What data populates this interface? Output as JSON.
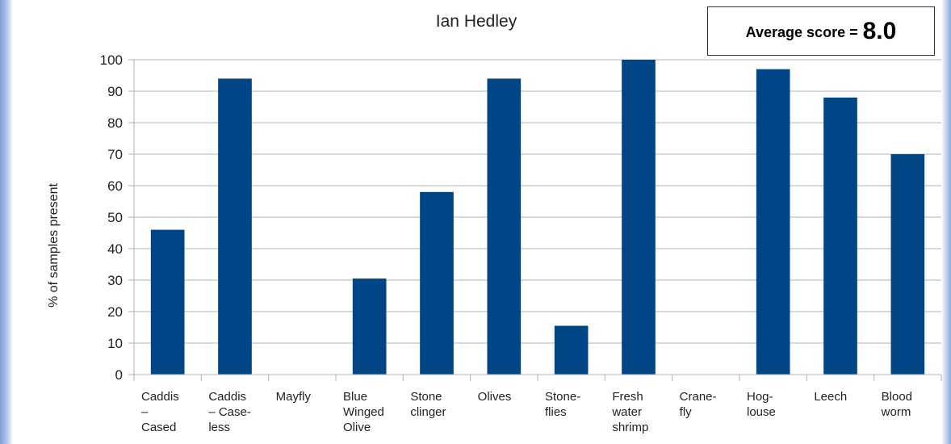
{
  "chart_data": {
    "type": "bar",
    "title": "Ian Hedley",
    "ylabel": "% of samples present",
    "xlabel": "",
    "ylim": [
      0,
      100
    ],
    "yticks": [
      0,
      10,
      20,
      30,
      40,
      50,
      60,
      70,
      80,
      90,
      100
    ],
    "grid": true,
    "bar_color": "#004586",
    "categories": [
      [
        "Caddis",
        "–",
        "Cased"
      ],
      [
        "Caddis",
        "– Case-",
        "less"
      ],
      [
        "Mayfly"
      ],
      [
        "Blue",
        "Winged",
        "Olive"
      ],
      [
        "Stone",
        "clinger"
      ],
      [
        "Olives"
      ],
      [
        "Stone-",
        "flies"
      ],
      [
        "Fresh",
        "water",
        "shrimp"
      ],
      [
        "Crane-",
        "fly"
      ],
      [
        "Hog-",
        "louse"
      ],
      [
        "Leech"
      ],
      [
        "Blood",
        "worm"
      ]
    ],
    "values": [
      46,
      94,
      0,
      30.5,
      58,
      94,
      15.5,
      100,
      0,
      97,
      88,
      70
    ]
  },
  "score_box": {
    "label": "Average score =",
    "value": "8.0"
  }
}
